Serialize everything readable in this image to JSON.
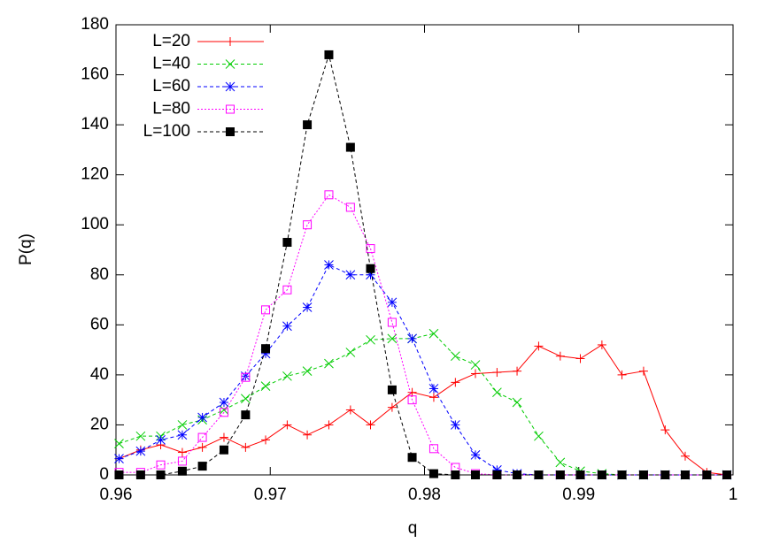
{
  "chart_data": {
    "type": "line",
    "x_label": "q",
    "y_label": "P(q)",
    "x": [
      0.9602,
      0.9616,
      0.9629,
      0.9643,
      0.9656,
      0.967,
      0.9684,
      0.9697,
      0.9711,
      0.9724,
      0.9738,
      0.9752,
      0.9765,
      0.9779,
      0.9792,
      0.9806,
      0.982,
      0.9833,
      0.9847,
      0.986,
      0.9874,
      0.9888,
      0.9901,
      0.9915,
      0.9928,
      0.9942,
      0.9956,
      0.9969,
      0.9983,
      0.9996
    ],
    "series": [
      {
        "name": "L=20",
        "color": "#ff0000",
        "marker": "plus",
        "line_style": "solid",
        "values": [
          6.5,
          10,
          12,
          9,
          11,
          15,
          11,
          14,
          20,
          16,
          20,
          26,
          20,
          27,
          33,
          31,
          37,
          40.5,
          41,
          41.5,
          51.5,
          47.5,
          46.5,
          52,
          40,
          41.5,
          18,
          7.5,
          1,
          0
        ]
      },
      {
        "name": "L=40",
        "color": "#00cc00",
        "marker": "cross",
        "line_style": "dashed",
        "values": [
          12.5,
          15.5,
          15.5,
          20,
          22,
          26,
          30.5,
          35.5,
          39.5,
          41.5,
          44.5,
          49,
          54,
          54.5,
          54.5,
          56.5,
          47.5,
          44,
          33,
          29,
          15.5,
          5,
          1.5,
          0.5,
          0,
          0,
          0,
          0,
          0,
          0
        ]
      },
      {
        "name": "L=60",
        "color": "#0000ff",
        "marker": "star",
        "line_style": "dashed",
        "values": [
          6.5,
          9.5,
          14,
          16,
          23,
          29,
          39.5,
          48.5,
          59.5,
          67,
          84,
          80,
          80,
          69,
          54.5,
          34.5,
          20,
          8,
          2,
          0.5,
          0,
          0,
          0,
          0,
          0,
          0,
          0,
          0,
          0,
          0
        ]
      },
      {
        "name": "L=80",
        "color": "#ff00ff",
        "marker": "open-square",
        "line_style": "dotted",
        "values": [
          1,
          1,
          4,
          5.5,
          15,
          25,
          39,
          66,
          74,
          100,
          112,
          107,
          90.5,
          61,
          30,
          10.5,
          3,
          0.5,
          0,
          0,
          0,
          0,
          0,
          0,
          0,
          0,
          0,
          0,
          0,
          0
        ]
      },
      {
        "name": "L=100",
        "color": "#000000",
        "marker": "filled-square",
        "line_style": "dashed",
        "values": [
          0,
          0,
          0,
          1.5,
          3.5,
          10,
          24,
          50.5,
          93,
          140,
          168,
          131,
          82.5,
          34,
          7,
          0.5,
          0,
          0,
          0,
          0,
          0,
          0,
          0,
          0,
          0,
          0,
          0,
          0,
          0,
          0
        ]
      }
    ],
    "xlim": [
      0.96,
      1
    ],
    "xticks": [
      0.96,
      0.97,
      0.98,
      0.99,
      1
    ],
    "ylim": [
      0,
      180
    ],
    "yticks": [
      0,
      20,
      40,
      60,
      80,
      100,
      120,
      140,
      160,
      180
    ],
    "legend": "top-left",
    "grid": false
  }
}
